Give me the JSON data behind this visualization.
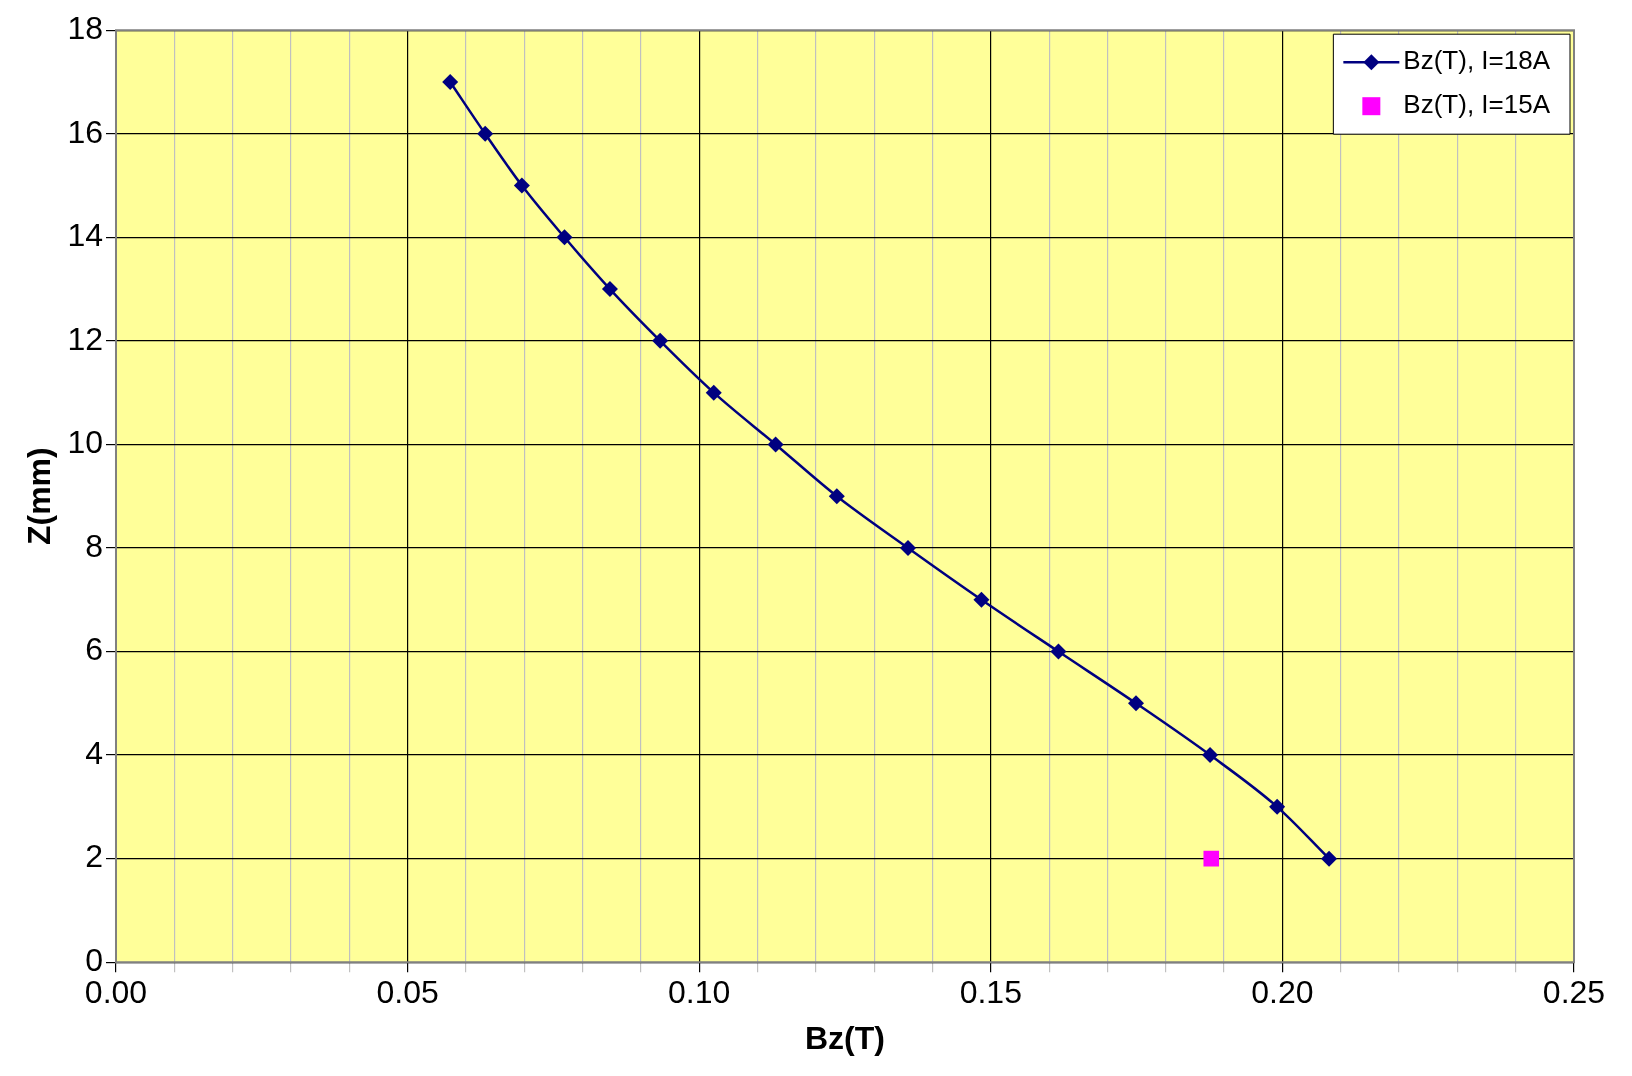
{
  "chart_data": {
    "type": "line",
    "xlabel": "Bz(T)",
    "ylabel": "Z(mm)",
    "series": [
      {
        "name": "Bz(T), I=18A",
        "color": "#000080",
        "marker": "diamond",
        "x": [
          0.0573,
          0.0633,
          0.0696,
          0.0769,
          0.0847,
          0.0933,
          0.1025,
          0.1131,
          0.1236,
          0.1358,
          0.1484,
          0.1616,
          0.1749,
          0.1876,
          0.1991,
          0.208
        ],
        "values": [
          17,
          16,
          15,
          14,
          13,
          12,
          11,
          10,
          9,
          8,
          7,
          6,
          5,
          4,
          3,
          2
        ]
      },
      {
        "name": "Bz(T), I=15A",
        "type": "scatter",
        "color": "#ff00ff",
        "marker": "square",
        "x": [
          0.1878
        ],
        "values": [
          2
        ]
      }
    ],
    "xlim": [
      0,
      0.25
    ],
    "ylim": [
      0,
      18
    ],
    "xticks": [
      {
        "value": 0,
        "label": "0.00"
      },
      {
        "value": 0.01,
        "label": null
      },
      {
        "value": 0.02,
        "label": null
      },
      {
        "value": 0.03,
        "label": null
      },
      {
        "value": 0.04,
        "label": null
      },
      {
        "value": 0.05,
        "label": "0.05"
      },
      {
        "value": 0.06,
        "label": null
      },
      {
        "value": 0.07,
        "label": null
      },
      {
        "value": 0.08,
        "label": null
      },
      {
        "value": 0.09,
        "label": null
      },
      {
        "value": 0.1,
        "label": "0.10"
      },
      {
        "value": 0.11,
        "label": null
      },
      {
        "value": 0.12,
        "label": null
      },
      {
        "value": 0.13,
        "label": null
      },
      {
        "value": 0.14,
        "label": null
      },
      {
        "value": 0.15,
        "label": "0.15"
      },
      {
        "value": 0.16,
        "label": null
      },
      {
        "value": 0.17,
        "label": null
      },
      {
        "value": 0.18,
        "label": null
      },
      {
        "value": 0.19,
        "label": null
      },
      {
        "value": 0.2,
        "label": "0.20"
      },
      {
        "value": 0.21,
        "label": null
      },
      {
        "value": 0.22,
        "label": null
      },
      {
        "value": 0.23,
        "label": null
      },
      {
        "value": 0.24,
        "label": null
      },
      {
        "value": 0.25,
        "label": "0.25"
      }
    ],
    "yticks": [
      0,
      2,
      4,
      6,
      8,
      10,
      12,
      14,
      16,
      18
    ],
    "grid": true,
    "legend": "top right"
  }
}
